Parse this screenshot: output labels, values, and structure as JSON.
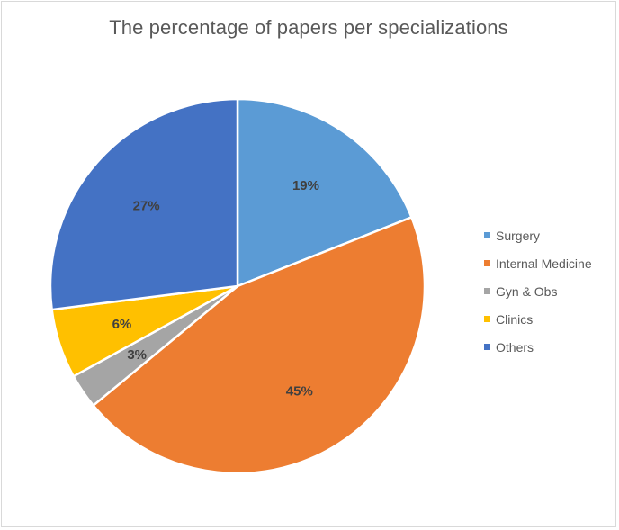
{
  "chart_data": {
    "type": "pie",
    "title": "The percentage of papers per specializations",
    "categories": [
      "Surgery",
      "Internal Medicine",
      "Gyn & Obs",
      "Clinics",
      "Others"
    ],
    "values": [
      19,
      45,
      3,
      6,
      27
    ],
    "data_labels": [
      "19%",
      "45%",
      "3%",
      "6%",
      "27%"
    ],
    "colors": [
      "#5B9BD5",
      "#ED7D31",
      "#A5A5A5",
      "#FFC000",
      "#4472C4"
    ],
    "legend_position": "right"
  }
}
